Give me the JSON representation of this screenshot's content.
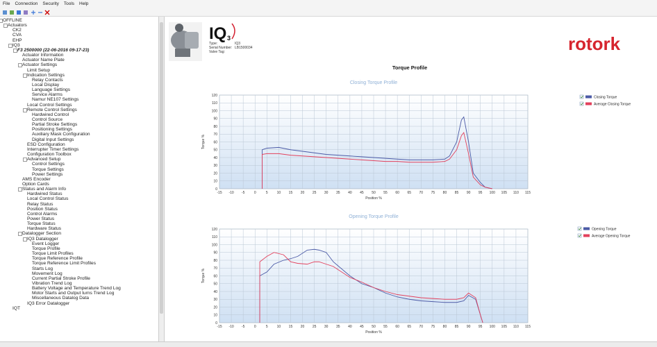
{
  "menu": [
    "File",
    "Connection",
    "Security",
    "Tools",
    "Help"
  ],
  "tree": [
    {
      "label": "OFFLINE",
      "children": [
        {
          "label": "Actuators",
          "children": [
            {
              "label": "CK2"
            },
            {
              "label": "CVA"
            },
            {
              "label": "EHP"
            },
            {
              "label": "IQ3",
              "children": [
                {
                  "label": "F3 2500000 (22-06-2016 09-17-23)",
                  "children": [
                    {
                      "label": "Actuator Information"
                    },
                    {
                      "label": "Actuator Name Plate"
                    },
                    {
                      "label": "Actuator Settings",
                      "children": [
                        {
                          "label": "Limit Setup"
                        },
                        {
                          "label": "Indication Settings",
                          "children": [
                            {
                              "label": "Relay Contacts"
                            },
                            {
                              "label": "Local Display"
                            },
                            {
                              "label": "Language Settings"
                            },
                            {
                              "label": "Service Alarms"
                            },
                            {
                              "label": "Namur NE107 Settings"
                            }
                          ]
                        },
                        {
                          "label": "Local Control Settings"
                        },
                        {
                          "label": "Remote Control Settings",
                          "children": [
                            {
                              "label": "Hardwired Control"
                            },
                            {
                              "label": "Control Source"
                            },
                            {
                              "label": "Partial Stroke Settings"
                            },
                            {
                              "label": "Positioning Settings"
                            },
                            {
                              "label": "Auxiliary Mask Configuration"
                            },
                            {
                              "label": "Digital Input Settings"
                            }
                          ]
                        },
                        {
                          "label": "ESD Configuration"
                        },
                        {
                          "label": "Interrupter Timer Settings"
                        },
                        {
                          "label": "Configuration Toolbox"
                        },
                        {
                          "label": "Advanced Setup",
                          "children": [
                            {
                              "label": "Control Settings"
                            },
                            {
                              "label": "Torque Settings"
                            },
                            {
                              "label": "Power Settings"
                            }
                          ]
                        }
                      ]
                    },
                    {
                      "label": "AMS Encoder"
                    },
                    {
                      "label": "Option Cards"
                    },
                    {
                      "label": "Status and Alarm Info",
                      "children": [
                        {
                          "label": "Hardwired Status"
                        },
                        {
                          "label": "Local Control Status"
                        },
                        {
                          "label": "Relay Status"
                        },
                        {
                          "label": "Position Status"
                        },
                        {
                          "label": "Control Alarms"
                        },
                        {
                          "label": "Power Status"
                        },
                        {
                          "label": "Torque Status"
                        },
                        {
                          "label": "Hardware Status"
                        }
                      ]
                    },
                    {
                      "label": "Datalogger Section",
                      "children": [
                        {
                          "label": "IQ3 Datalogger",
                          "children": [
                            {
                              "label": "Event Logger"
                            },
                            {
                              "label": "Torque Profile"
                            },
                            {
                              "label": "Torque Limit Profiles"
                            },
                            {
                              "label": "Torque Reference Profile"
                            },
                            {
                              "label": "Torque Reference Limit Profiles"
                            },
                            {
                              "label": "Starts Log"
                            },
                            {
                              "label": "Movement Log"
                            },
                            {
                              "label": "Current Partial Stroke Profile"
                            },
                            {
                              "label": "Vibration Trend Log"
                            },
                            {
                              "label": "Battery Voltage and Temperature Trend Log"
                            },
                            {
                              "label": "Motor Starts and Output turns Trend Log"
                            },
                            {
                              "label": "Miscellaneous Datalog Data"
                            }
                          ]
                        },
                        {
                          "label": "IQ3 Error Datalogger"
                        }
                      ]
                    }
                  ]
                }
              ]
            },
            {
              "label": "IQT"
            }
          ]
        }
      ]
    }
  ],
  "header": {
    "product": "IQ",
    "product_sub": "3",
    "logo": "rotork",
    "fields": [
      {
        "label": "Type:",
        "value": "IQ3"
      },
      {
        "label": "Serial Number:",
        "value": "LB1500034"
      },
      {
        "label": "Valve Tag:"
      }
    ]
  },
  "page_title": "Torque Profile",
  "chart_data": [
    {
      "type": "line",
      "title": "Closing Torque Profile",
      "xlabel": "Position %",
      "ylabel": "Torque %",
      "x": [
        3,
        3,
        5,
        10,
        15,
        20,
        25,
        30,
        35,
        40,
        45,
        50,
        55,
        60,
        65,
        70,
        75,
        80,
        82,
        85,
        87,
        88,
        90,
        92,
        95,
        97,
        100
      ],
      "xlim": [
        -15,
        115
      ],
      "xticks": [
        -15,
        -10,
        -5,
        0,
        5,
        10,
        15,
        20,
        25,
        30,
        35,
        40,
        45,
        50,
        55,
        60,
        65,
        70,
        75,
        80,
        85,
        90,
        95,
        100,
        105,
        110,
        115
      ],
      "ylim": [
        0,
        120
      ],
      "yticks": [
        0,
        10,
        20,
        30,
        40,
        50,
        60,
        70,
        80,
        90,
        100,
        110,
        120
      ],
      "grid": true,
      "series": [
        {
          "name": "Closing Torque",
          "color": "#4b5aa6",
          "values": [
            0,
            50,
            52,
            53,
            50,
            48,
            46,
            44,
            43,
            42,
            41,
            40,
            39,
            38,
            37,
            37,
            37,
            38,
            42,
            60,
            88,
            92,
            60,
            20,
            8,
            2,
            0
          ]
        },
        {
          "name": "Average Closing Torque",
          "color": "#e2405c",
          "values": [
            0,
            44,
            45,
            45,
            43,
            42,
            41,
            40,
            39,
            38,
            37,
            36,
            35,
            35,
            34,
            34,
            34,
            35,
            38,
            50,
            68,
            72,
            45,
            15,
            5,
            2,
            0
          ]
        }
      ]
    },
    {
      "type": "line",
      "title": "Opening Torque Profile",
      "xlabel": "Position %",
      "ylabel": "Torque %",
      "x": [
        2,
        2,
        5,
        8,
        12,
        15,
        18,
        22,
        25,
        27,
        30,
        33,
        40,
        45,
        50,
        55,
        60,
        65,
        70,
        75,
        80,
        85,
        88,
        90,
        93,
        95,
        96
      ],
      "xlim": [
        -15,
        115
      ],
      "xticks": [
        -15,
        -10,
        -5,
        0,
        5,
        10,
        15,
        20,
        25,
        30,
        35,
        40,
        45,
        50,
        55,
        60,
        65,
        70,
        75,
        80,
        85,
        90,
        95,
        100,
        105,
        110,
        115
      ],
      "ylim": [
        0,
        120
      ],
      "yticks": [
        0,
        10,
        20,
        30,
        40,
        50,
        60,
        70,
        80,
        90,
        100,
        110,
        120
      ],
      "grid": true,
      "series": [
        {
          "name": "Opening Torque",
          "color": "#4b5aa6",
          "values": [
            0,
            60,
            65,
            75,
            80,
            82,
            85,
            93,
            94,
            93,
            90,
            78,
            60,
            50,
            45,
            38,
            33,
            30,
            28,
            27,
            26,
            26,
            28,
            35,
            30,
            10,
            0
          ]
        },
        {
          "name": "Average Opening Torque",
          "color": "#e2405c",
          "values": [
            0,
            78,
            85,
            90,
            87,
            78,
            76,
            75,
            78,
            78,
            75,
            72,
            58,
            52,
            45,
            40,
            36,
            34,
            32,
            31,
            30,
            30,
            32,
            38,
            32,
            10,
            0
          ]
        }
      ]
    }
  ]
}
